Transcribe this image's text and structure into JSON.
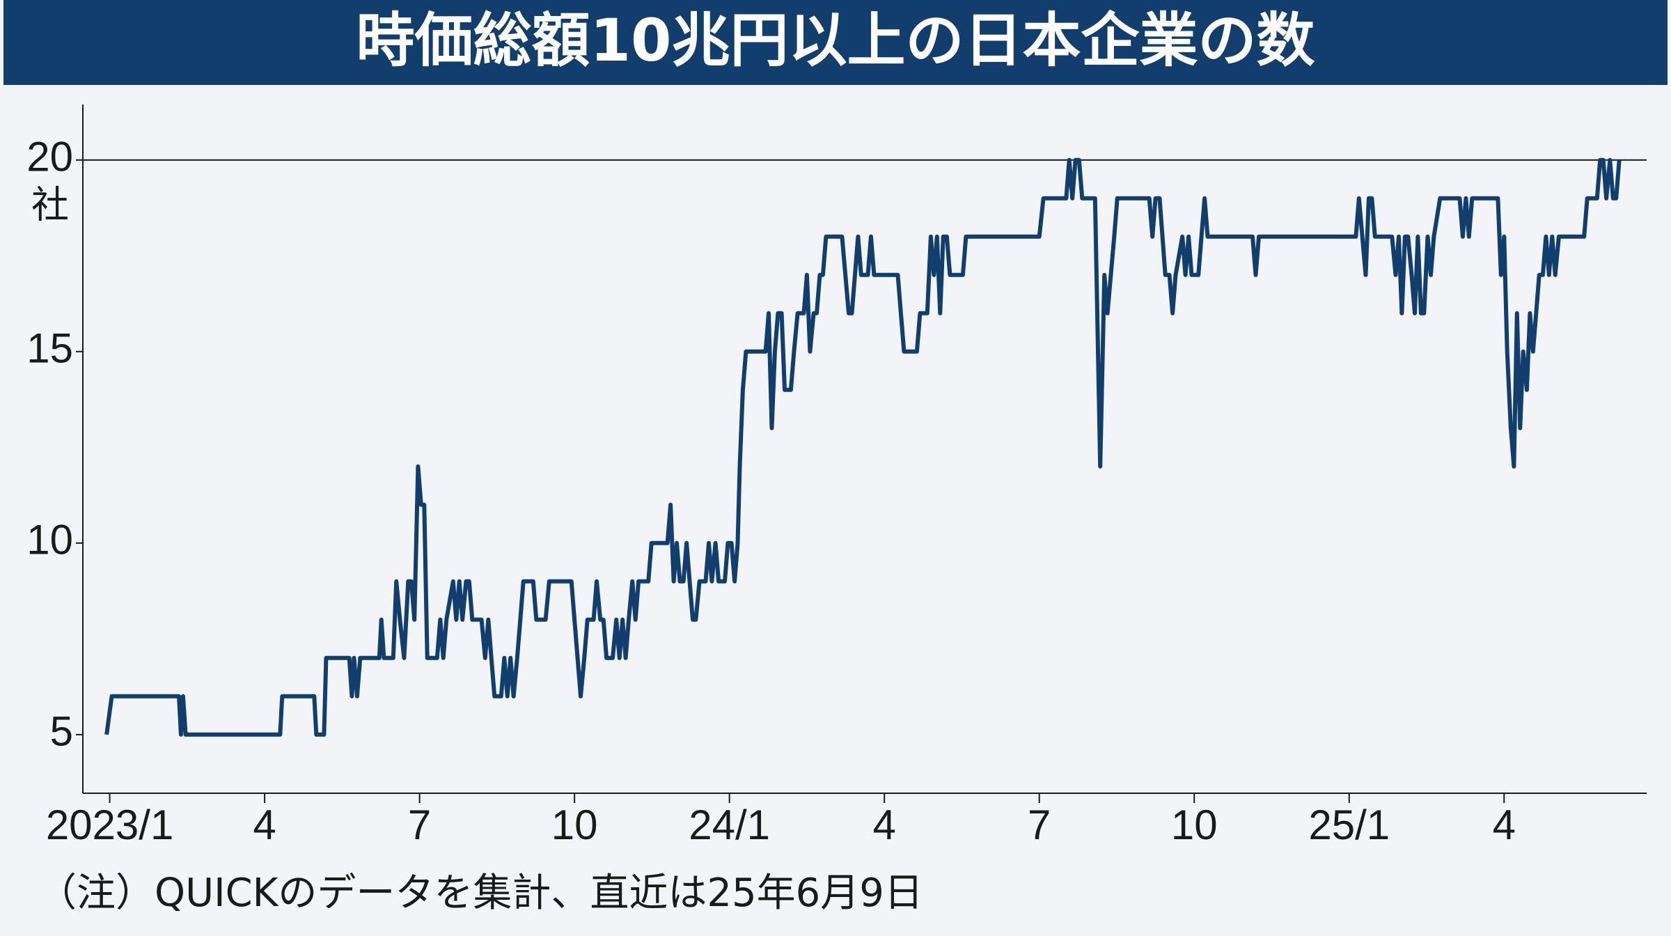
{
  "chart_data": {
    "type": "line",
    "title": "時価総額10兆円以上の日本企業の数",
    "note": "（注）QUICKのデータを集計、直近は25年6月9日",
    "y_unit": "社",
    "color": "#123e6e",
    "xlim": [
      -0.52,
      29.76
    ],
    "ylim": [
      3.47,
      21.45
    ],
    "xticks": [
      {
        "value": 0,
        "label": "2023/1"
      },
      {
        "value": 3,
        "label": "4"
      },
      {
        "value": 6,
        "label": "7"
      },
      {
        "value": 9,
        "label": "10"
      },
      {
        "value": 12,
        "label": "24/1"
      },
      {
        "value": 15,
        "label": "4"
      },
      {
        "value": 18,
        "label": "7"
      },
      {
        "value": 21,
        "label": "10"
      },
      {
        "value": 24,
        "label": "25/1"
      },
      {
        "value": 27,
        "label": "4"
      }
    ],
    "yticks": [
      5,
      10,
      15,
      20
    ],
    "hline": 20,
    "x": [
      -0.06,
      0.04,
      1.34,
      1.38,
      1.42,
      1.47,
      3.3,
      3.34,
      3.96,
      4.0,
      4.15,
      4.19,
      4.64,
      4.69,
      4.73,
      4.79,
      4.85,
      5.22,
      5.26,
      5.31,
      5.49,
      5.55,
      5.62,
      5.7,
      5.78,
      5.84,
      5.9,
      5.97,
      6.03,
      6.09,
      6.15,
      6.34,
      6.4,
      6.46,
      6.52,
      6.65,
      6.71,
      6.77,
      6.83,
      6.9,
      6.96,
      7.02,
      7.2,
      7.27,
      7.33,
      7.39,
      7.45,
      7.58,
      7.64,
      7.7,
      7.76,
      7.82,
      7.89,
      7.95,
      8.01,
      8.2,
      8.26,
      8.44,
      8.51,
      8.94,
      9.0,
      9.12,
      9.19,
      9.25,
      9.37,
      9.43,
      9.5,
      9.56,
      9.62,
      9.74,
      9.81,
      9.87,
      9.93,
      9.99,
      10.05,
      10.12,
      10.18,
      10.24,
      10.43,
      10.49,
      10.8,
      10.86,
      10.92,
      10.98,
      11.04,
      11.11,
      11.17,
      11.23,
      11.29,
      11.35,
      11.42,
      11.54,
      11.6,
      11.66,
      11.73,
      11.79,
      11.91,
      11.97,
      12.04,
      12.1,
      12.16,
      12.2,
      12.26,
      12.32,
      12.7,
      12.76,
      12.82,
      12.88,
      12.94,
      13.01,
      13.07,
      13.19,
      13.25,
      13.32,
      13.44,
      13.5,
      13.56,
      13.63,
      13.69,
      13.75,
      13.81,
      13.87,
      14.18,
      14.31,
      14.37,
      14.49,
      14.55,
      14.68,
      14.74,
      14.8,
      14.86,
      15.26,
      15.32,
      15.38,
      15.63,
      15.69,
      15.83,
      15.9,
      15.96,
      16.02,
      16.08,
      16.14,
      16.21,
      16.27,
      16.52,
      16.58,
      18.0,
      18.08,
      18.52,
      18.58,
      18.64,
      18.7,
      18.77,
      18.83,
      19.08,
      19.18,
      19.26,
      19.32,
      19.45,
      19.51,
      20.13,
      20.19,
      20.25,
      20.33,
      20.44,
      20.52,
      20.58,
      20.64,
      20.77,
      20.83,
      20.89,
      20.95,
      21.08,
      21.14,
      21.2,
      21.26,
      22.13,
      22.19,
      22.25,
      24.13,
      24.19,
      24.32,
      24.38,
      24.44,
      24.5,
      24.63,
      24.83,
      24.9,
      24.96,
      25.02,
      25.08,
      25.14,
      25.21,
      25.27,
      25.33,
      25.39,
      25.45,
      25.52,
      25.58,
      25.64,
      25.76,
      26.14,
      26.2,
      26.26,
      26.32,
      26.38,
      26.88,
      26.94,
      27.0,
      27.06,
      27.13,
      27.19,
      27.25,
      27.31,
      27.37,
      27.44,
      27.5,
      27.56,
      27.62,
      27.68,
      27.75,
      27.81,
      27.87,
      27.93,
      27.99,
      28.06,
      28.55,
      28.61,
      28.8,
      28.86,
      28.92,
      28.98,
      29.05,
      29.11,
      29.17,
      29.23
    ],
    "values": [
      5,
      6,
      6,
      5,
      6,
      5,
      5,
      6,
      6,
      5,
      5,
      7,
      7,
      6,
      7,
      6,
      7,
      7,
      8,
      7,
      7,
      9,
      8,
      7,
      9,
      9,
      8,
      12,
      11,
      11,
      7,
      7,
      8,
      7,
      8,
      9,
      8,
      9,
      8,
      9,
      9,
      8,
      8,
      7,
      8,
      7,
      6,
      6,
      7,
      6,
      7,
      6,
      7,
      8,
      9,
      9,
      8,
      8,
      9,
      9,
      8,
      6,
      7,
      8,
      8,
      9,
      8,
      8,
      7,
      7,
      8,
      7,
      8,
      7,
      8,
      9,
      8,
      9,
      9,
      10,
      10,
      11,
      9,
      10,
      9,
      9,
      10,
      9,
      8,
      8,
      9,
      9,
      10,
      9,
      10,
      9,
      9,
      10,
      10,
      9,
      10,
      12,
      14,
      15,
      15,
      16,
      13,
      15,
      16,
      16,
      14,
      14,
      15,
      16,
      16,
      17,
      15,
      16,
      16,
      17,
      17,
      18,
      18,
      16,
      16,
      18,
      17,
      17,
      18,
      17,
      17,
      17,
      16,
      15,
      15,
      16,
      16,
      18,
      17,
      18,
      16,
      18,
      18,
      17,
      17,
      18,
      18,
      19,
      19,
      20,
      19,
      20,
      20,
      19,
      19,
      12,
      17,
      16,
      18,
      19,
      19,
      18,
      19,
      19,
      17,
      17,
      16,
      17,
      18,
      17,
      18,
      17,
      17,
      18,
      19,
      18,
      18,
      17,
      18,
      18,
      19,
      17,
      19,
      19,
      18,
      18,
      18,
      17,
      18,
      16,
      18,
      18,
      17,
      16,
      18,
      16,
      16,
      18,
      17,
      18,
      19,
      19,
      18,
      19,
      18,
      19,
      19,
      17,
      18,
      15,
      13,
      12,
      16,
      13,
      15,
      14,
      16,
      15,
      16,
      17,
      17,
      18,
      17,
      18,
      17,
      18,
      18,
      19,
      19,
      20,
      20,
      19,
      20,
      19,
      19,
      20
    ]
  }
}
